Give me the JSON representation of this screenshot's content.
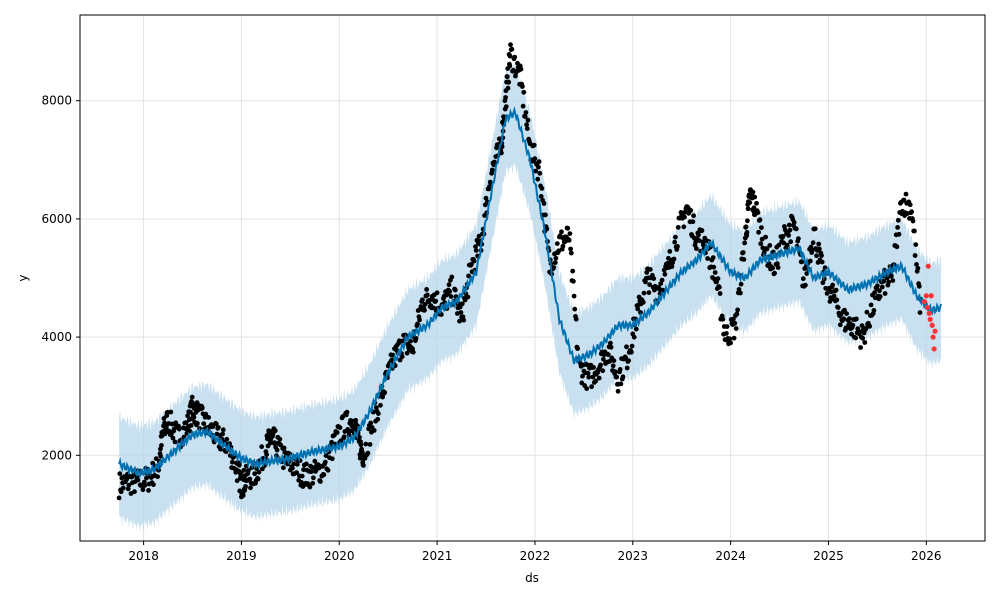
{
  "chart_data": {
    "type": "scatter",
    "xlabel": "ds",
    "ylabel": "y",
    "x_tick_labels": [
      "2018",
      "2019",
      "2020",
      "2021",
      "2022",
      "2023",
      "2024",
      "2025",
      "2026"
    ],
    "y_tick_labels": [
      "2000",
      "4000",
      "6000",
      "8000"
    ],
    "x_ticks": [
      2018,
      2019,
      2020,
      2021,
      2022,
      2023,
      2024,
      2025,
      2026
    ],
    "y_ticks": [
      2000,
      4000,
      6000,
      8000
    ],
    "xlim": [
      2017.35,
      2026.6
    ],
    "ylim": [
      550,
      9450
    ],
    "grid": true,
    "colors": {
      "observed": "#000000",
      "forecast_line": "#0072B2",
      "uncertainty": "#b6d5ea",
      "recent": "#ff3333"
    },
    "series": [
      {
        "kind": "observed",
        "x": [
          2017.75,
          2017.85,
          2017.95,
          2018.05,
          2018.15,
          2018.2,
          2018.25,
          2018.35,
          2018.45,
          2018.5,
          2018.55,
          2018.65,
          2018.75,
          2018.85,
          2018.95,
          2019.0,
          2019.05,
          2019.15,
          2019.25,
          2019.3,
          2019.35,
          2019.45,
          2019.55,
          2019.65,
          2019.75,
          2019.85,
          2019.95,
          2020.05,
          2020.15,
          2020.2,
          2020.25,
          2020.35,
          2020.45,
          2020.55,
          2020.65,
          2020.75,
          2020.85,
          2020.95,
          2021.05,
          2021.15,
          2021.25,
          2021.35,
          2021.45,
          2021.55,
          2021.65,
          2021.7,
          2021.75,
          2021.85,
          2021.95,
          2022.05,
          2022.15,
          2022.25,
          2022.35,
          2022.45,
          2022.55,
          2022.65,
          2022.75,
          2022.85,
          2022.95,
          2023.05,
          2023.15,
          2023.25,
          2023.35,
          2023.45,
          2023.55,
          2023.65,
          2023.75,
          2023.85,
          2023.95,
          2024.05,
          2024.15,
          2024.2,
          2024.25,
          2024.35,
          2024.45,
          2024.55,
          2024.65,
          2024.75,
          2024.85,
          2024.95,
          2025.05,
          2025.15,
          2025.25,
          2025.35,
          2025.45,
          2025.55,
          2025.65,
          2025.75,
          2025.85,
          2025.95
        ],
        "y": [
          1500,
          1550,
          1550,
          1600,
          1800,
          2400,
          2600,
          2300,
          2500,
          2800,
          2700,
          2500,
          2300,
          2200,
          1800,
          1500,
          1600,
          1700,
          2100,
          2300,
          2200,
          1900,
          1800,
          1650,
          1700,
          1800,
          2200,
          2500,
          2600,
          2200,
          2000,
          2600,
          3100,
          3600,
          3900,
          3800,
          4600,
          4700,
          4500,
          4800,
          4300,
          5200,
          5600,
          6800,
          7200,
          8000,
          8800,
          8400,
          7200,
          6800,
          5200,
          5600,
          5700,
          3500,
          3300,
          3500,
          3800,
          3300,
          3700,
          4400,
          5000,
          4800,
          5100,
          5700,
          6200,
          5700,
          5600,
          5000,
          4000,
          4200,
          5700,
          6400,
          6200,
          5500,
          5200,
          5700,
          5900,
          4900,
          5800,
          5000,
          4700,
          4300,
          4200,
          4000,
          4500,
          4900,
          5000,
          6300,
          6200,
          4300
        ],
        "jitter": 220
      },
      {
        "kind": "recent",
        "x": [
          2025.98,
          2026.0,
          2026.01,
          2026.02,
          2026.03,
          2026.04,
          2026.05,
          2026.06,
          2026.07,
          2026.08,
          2026.09
        ],
        "y": [
          4600,
          4700,
          4500,
          5200,
          4400,
          4300,
          4700,
          4200,
          4000,
          3800,
          4100
        ]
      },
      {
        "kind": "forecast",
        "x": [
          2017.75,
          2017.95,
          2018.1,
          2018.3,
          2018.5,
          2018.65,
          2018.8,
          2019.0,
          2019.15,
          2019.3,
          2019.5,
          2019.7,
          2019.85,
          2020.0,
          2020.15,
          2020.3,
          2020.5,
          2020.7,
          2020.9,
          2021.05,
          2021.2,
          2021.4,
          2021.55,
          2021.7,
          2021.8,
          2021.95,
          2022.1,
          2022.25,
          2022.4,
          2022.55,
          2022.7,
          2022.85,
          2023.0,
          2023.15,
          2023.3,
          2023.5,
          2023.65,
          2023.8,
          2024.0,
          2024.15,
          2024.3,
          2024.5,
          2024.7,
          2024.85,
          2025.0,
          2025.2,
          2025.4,
          2025.6,
          2025.75,
          2025.9,
          2026.05,
          2026.15
        ],
        "y": [
          1850,
          1700,
          1750,
          2050,
          2350,
          2400,
          2200,
          1950,
          1850,
          1900,
          1950,
          2050,
          2100,
          2150,
          2300,
          2700,
          3400,
          4000,
          4200,
          4500,
          4600,
          5100,
          6400,
          7700,
          7800,
          7000,
          5800,
          4300,
          3600,
          3700,
          3900,
          4200,
          4200,
          4400,
          4700,
          5100,
          5300,
          5600,
          5100,
          5000,
          5300,
          5400,
          5500,
          5000,
          5100,
          4800,
          4900,
          5100,
          5200,
          4700,
          4450,
          4500
        ]
      },
      {
        "kind": "uncertainty",
        "lower_offset": -900,
        "upper_offset": 800
      }
    ]
  }
}
